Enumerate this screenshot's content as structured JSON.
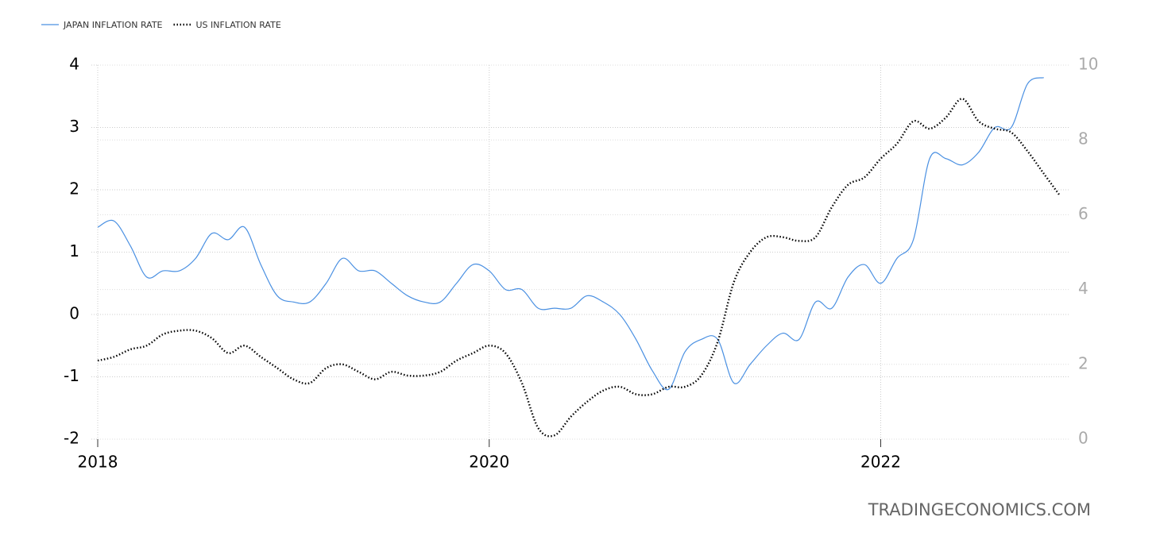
{
  "chart_data": {
    "type": "line",
    "x": [
      2018.0,
      2018.083,
      2018.167,
      2018.25,
      2018.333,
      2018.417,
      2018.5,
      2018.583,
      2018.667,
      2018.75,
      2018.833,
      2018.917,
      2019.0,
      2019.083,
      2019.167,
      2019.25,
      2019.333,
      2019.417,
      2019.5,
      2019.583,
      2019.667,
      2019.75,
      2019.833,
      2019.917,
      2020.0,
      2020.083,
      2020.167,
      2020.25,
      2020.333,
      2020.417,
      2020.5,
      2020.583,
      2020.667,
      2020.75,
      2020.833,
      2020.917,
      2021.0,
      2021.083,
      2021.167,
      2021.25,
      2021.333,
      2021.417,
      2021.5,
      2021.583,
      2021.667,
      2021.75,
      2021.833,
      2021.917,
      2022.0,
      2022.083,
      2022.167,
      2022.25,
      2022.333,
      2022.417,
      2022.5,
      2022.583,
      2022.667,
      2022.75,
      2022.833,
      2022.917
    ],
    "series": [
      {
        "name": "JAPAN INFLATION RATE",
        "color": "#4a90e2",
        "dash": "solid",
        "values": [
          1.4,
          1.5,
          1.1,
          0.6,
          0.7,
          0.7,
          0.9,
          1.3,
          1.2,
          1.4,
          0.8,
          0.3,
          0.2,
          0.2,
          0.5,
          0.9,
          0.7,
          0.7,
          0.5,
          0.3,
          0.2,
          0.2,
          0.5,
          0.8,
          0.7,
          0.4,
          0.4,
          0.1,
          0.1,
          0.1,
          0.3,
          0.2,
          0.0,
          -0.4,
          -0.9,
          -1.2,
          -0.6,
          -0.4,
          -0.4,
          -1.1,
          -0.8,
          -0.5,
          -0.3,
          -0.4,
          0.2,
          0.1,
          0.6,
          0.8,
          0.5,
          0.9,
          1.2,
          2.5,
          2.5,
          2.4,
          2.6,
          3.0,
          3.0,
          3.7,
          3.8,
          null
        ]
      },
      {
        "name": "US INFLATION RATE",
        "color": "#000000",
        "dash": "dotted",
        "axis": "y2",
        "values": [
          2.1,
          2.2,
          2.4,
          2.5,
          2.8,
          2.9,
          2.9,
          2.7,
          2.3,
          2.5,
          2.2,
          1.9,
          1.6,
          1.5,
          1.9,
          2.0,
          1.8,
          1.6,
          1.8,
          1.7,
          1.7,
          1.8,
          2.1,
          2.3,
          2.5,
          2.3,
          1.5,
          0.3,
          0.1,
          0.6,
          1.0,
          1.3,
          1.4,
          1.2,
          1.2,
          1.4,
          1.4,
          1.7,
          2.6,
          4.2,
          5.0,
          5.4,
          5.4,
          5.3,
          5.4,
          6.2,
          6.8,
          7.0,
          7.5,
          7.9,
          8.5,
          8.3,
          8.6,
          9.1,
          8.5,
          8.3,
          8.2,
          7.7,
          7.1,
          6.5
        ]
      }
    ],
    "xlim": [
      2018,
      2022.96
    ],
    "xticks": [
      2018,
      2020,
      2022
    ],
    "ylim": [
      -2,
      4
    ],
    "yticks": [
      -2,
      -1,
      0,
      1,
      2,
      3,
      4
    ],
    "y2lim": [
      0,
      10
    ],
    "y2ticks": [
      0,
      2,
      4,
      6,
      8,
      10
    ],
    "grid": true,
    "legend": "top-left",
    "watermark": "TRADINGECONOMICS.COM"
  }
}
